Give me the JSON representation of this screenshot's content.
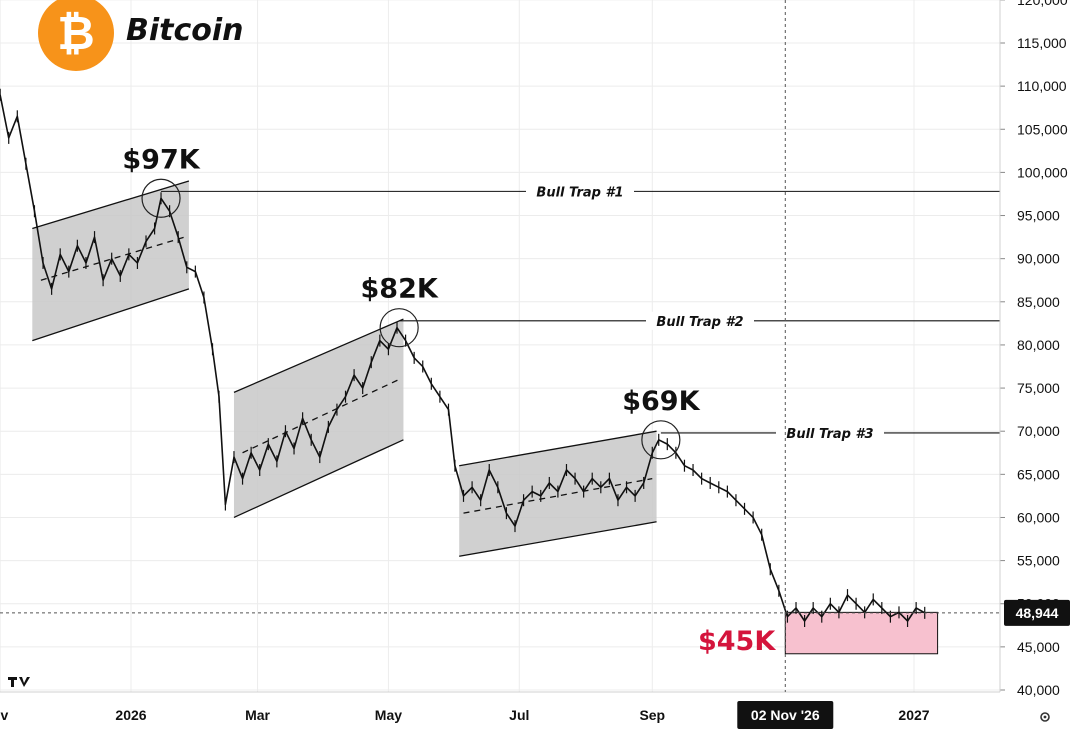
{
  "header": {
    "title": "Bitcoin",
    "logo_glyph": "₿",
    "logo_color": "#F7931A"
  },
  "chart_data": {
    "type": "line",
    "title": "Bitcoin",
    "ylim": [
      39500,
      120500
    ],
    "y_ticks": [
      40000,
      45000,
      50000,
      55000,
      60000,
      65000,
      70000,
      75000,
      80000,
      85000,
      90000,
      95000,
      100000,
      105000,
      110000,
      115000,
      120000
    ],
    "y_tick_labels": [
      "40,000",
      "45,000",
      "50,000",
      "55,000",
      "60,000",
      "65,000",
      "70,000",
      "75,000",
      "80,000",
      "85,000",
      "90,000",
      "95,000",
      "100,000",
      "105,000",
      "110,000",
      "115,000",
      "120,000"
    ],
    "x_range": [
      "2025-11-01",
      "2027-03-10"
    ],
    "x_ticks": [
      {
        "date": "2025-11-01",
        "label": "ov"
      },
      {
        "date": "2026-01-01",
        "label": "2026"
      },
      {
        "date": "2026-03-01",
        "label": "Mar"
      },
      {
        "date": "2026-05-01",
        "label": "May"
      },
      {
        "date": "2026-07-01",
        "label": "Jul"
      },
      {
        "date": "2026-09-01",
        "label": "Sep"
      },
      {
        "date": "2027-01-01",
        "label": "2027"
      }
    ],
    "crosshair": {
      "date": "2026-11-02",
      "date_label": "02 Nov '26",
      "price": 48944,
      "price_label": "48,944"
    },
    "price_path": [
      [
        "2025-11-01",
        109000
      ],
      [
        "2025-11-05",
        104000
      ],
      [
        "2025-11-09",
        106500
      ],
      [
        "2025-11-13",
        101000
      ],
      [
        "2025-11-17",
        95500
      ],
      [
        "2025-11-21",
        89500
      ],
      [
        "2025-11-25",
        86500
      ],
      [
        "2025-11-29",
        90500
      ],
      [
        "2025-12-03",
        88500
      ],
      [
        "2025-12-07",
        91500
      ],
      [
        "2025-12-11",
        89500
      ],
      [
        "2025-12-15",
        92500
      ],
      [
        "2025-12-19",
        87500
      ],
      [
        "2025-12-23",
        90000
      ],
      [
        "2025-12-27",
        88000
      ],
      [
        "2025-12-31",
        90500
      ],
      [
        "2026-01-04",
        89500
      ],
      [
        "2026-01-08",
        92000
      ],
      [
        "2026-01-12",
        93500
      ],
      [
        "2026-01-15",
        97000
      ],
      [
        "2026-01-19",
        95500
      ],
      [
        "2026-01-23",
        92500
      ],
      [
        "2026-01-27",
        89000
      ],
      [
        "2026-01-31",
        88500
      ],
      [
        "2026-02-04",
        85500
      ],
      [
        "2026-02-08",
        79500
      ],
      [
        "2026-02-11",
        74000
      ],
      [
        "2026-02-14",
        61500
      ],
      [
        "2026-02-18",
        67000
      ],
      [
        "2026-02-22",
        64500
      ],
      [
        "2026-02-26",
        67500
      ],
      [
        "2026-03-02",
        65500
      ],
      [
        "2026-03-06",
        68500
      ],
      [
        "2026-03-10",
        66500
      ],
      [
        "2026-03-14",
        70000
      ],
      [
        "2026-03-18",
        68000
      ],
      [
        "2026-03-22",
        71500
      ],
      [
        "2026-03-26",
        69000
      ],
      [
        "2026-03-30",
        67000
      ],
      [
        "2026-04-03",
        70500
      ],
      [
        "2026-04-07",
        72500
      ],
      [
        "2026-04-11",
        74000
      ],
      [
        "2026-04-15",
        76500
      ],
      [
        "2026-04-19",
        75000
      ],
      [
        "2026-04-23",
        78000
      ],
      [
        "2026-04-27",
        80500
      ],
      [
        "2026-05-01",
        79500
      ],
      [
        "2026-05-05",
        82000
      ],
      [
        "2026-05-09",
        80500
      ],
      [
        "2026-05-13",
        78500
      ],
      [
        "2026-05-17",
        77500
      ],
      [
        "2026-05-21",
        75500
      ],
      [
        "2026-05-25",
        74000
      ],
      [
        "2026-05-29",
        72500
      ],
      [
        "2026-06-01",
        66000
      ],
      [
        "2026-06-05",
        62500
      ],
      [
        "2026-06-09",
        63500
      ],
      [
        "2026-06-13",
        62000
      ],
      [
        "2026-06-17",
        65500
      ],
      [
        "2026-06-21",
        63500
      ],
      [
        "2026-06-25",
        60500
      ],
      [
        "2026-06-29",
        59000
      ],
      [
        "2026-07-03",
        62000
      ],
      [
        "2026-07-07",
        63000
      ],
      [
        "2026-07-11",
        62500
      ],
      [
        "2026-07-15",
        64000
      ],
      [
        "2026-07-19",
        63000
      ],
      [
        "2026-07-23",
        65500
      ],
      [
        "2026-07-27",
        64500
      ],
      [
        "2026-07-31",
        63000
      ],
      [
        "2026-08-04",
        64500
      ],
      [
        "2026-08-08",
        63500
      ],
      [
        "2026-08-12",
        64500
      ],
      [
        "2026-08-16",
        62000
      ],
      [
        "2026-08-20",
        63500
      ],
      [
        "2026-08-24",
        62500
      ],
      [
        "2026-08-28",
        64000
      ],
      [
        "2026-09-01",
        67500
      ],
      [
        "2026-09-04",
        69000
      ],
      [
        "2026-09-08",
        68500
      ],
      [
        "2026-09-12",
        67500
      ],
      [
        "2026-09-16",
        66000
      ],
      [
        "2026-09-20",
        65500
      ],
      [
        "2026-09-24",
        64500
      ],
      [
        "2026-09-28",
        64000
      ],
      [
        "2026-10-02",
        63500
      ],
      [
        "2026-10-06",
        63000
      ],
      [
        "2026-10-10",
        62000
      ],
      [
        "2026-10-14",
        61000
      ],
      [
        "2026-10-18",
        60000
      ],
      [
        "2026-10-22",
        58000
      ],
      [
        "2026-10-26",
        54000
      ],
      [
        "2026-10-30",
        51500
      ],
      [
        "2026-11-03",
        48500
      ],
      [
        "2026-11-07",
        49500
      ],
      [
        "2026-11-11",
        48000
      ],
      [
        "2026-11-15",
        49500
      ],
      [
        "2026-11-19",
        48500
      ],
      [
        "2026-11-23",
        50000
      ],
      [
        "2026-11-27",
        49000
      ],
      [
        "2026-12-01",
        51000
      ],
      [
        "2026-12-05",
        50000
      ],
      [
        "2026-12-09",
        49000
      ],
      [
        "2026-12-13",
        50500
      ],
      [
        "2026-12-17",
        49500
      ],
      [
        "2026-12-21",
        48500
      ],
      [
        "2026-12-25",
        49000
      ],
      [
        "2026-12-29",
        48000
      ],
      [
        "2027-01-02",
        49500
      ],
      [
        "2027-01-06",
        48944
      ]
    ],
    "channels": [
      {
        "name": "channel-1",
        "upper": [
          [
            "2025-11-16",
            93500
          ],
          [
            "2026-01-28",
            99000
          ]
        ],
        "lower": [
          [
            "2025-11-16",
            80500
          ],
          [
            "2026-01-28",
            86500
          ]
        ],
        "mid": [
          [
            "2025-11-20",
            87500
          ],
          [
            "2026-01-26",
            92500
          ]
        ]
      },
      {
        "name": "channel-2",
        "upper": [
          [
            "2026-02-18",
            74500
          ],
          [
            "2026-05-08",
            83000
          ]
        ],
        "lower": [
          [
            "2026-02-18",
            60000
          ],
          [
            "2026-05-08",
            69000
          ]
        ],
        "mid": [
          [
            "2026-02-22",
            67500
          ],
          [
            "2026-05-06",
            76000
          ]
        ]
      },
      {
        "name": "channel-3",
        "upper": [
          [
            "2026-06-03",
            66000
          ],
          [
            "2026-09-03",
            70000
          ]
        ],
        "lower": [
          [
            "2026-06-03",
            55500
          ],
          [
            "2026-09-03",
            59500
          ]
        ],
        "mid": [
          [
            "2026-06-05",
            60500
          ],
          [
            "2026-09-01",
            64500
          ]
        ]
      }
    ],
    "annotations": [
      {
        "label": "$97K",
        "date": "2026-01-15",
        "price": 97000,
        "trap_label": "Bull Trap #1",
        "trap_price": 97800
      },
      {
        "label": "$82K",
        "date": "2026-05-06",
        "price": 82000,
        "trap_label": "Bull Trap #2",
        "trap_price": 82800
      },
      {
        "label": "$69K",
        "date": "2026-09-05",
        "price": 69000,
        "trap_label": "Bull Trap #3",
        "trap_price": 69800
      }
    ],
    "target_zone": {
      "label": "$45K",
      "from_date": "2026-11-02",
      "to_date": "2027-01-12",
      "low": 44200,
      "high": 49000,
      "color": "#F7C1CF",
      "label_color": "#D4143C"
    },
    "channel_fill_color": "#C8C8C8",
    "grid": true
  }
}
